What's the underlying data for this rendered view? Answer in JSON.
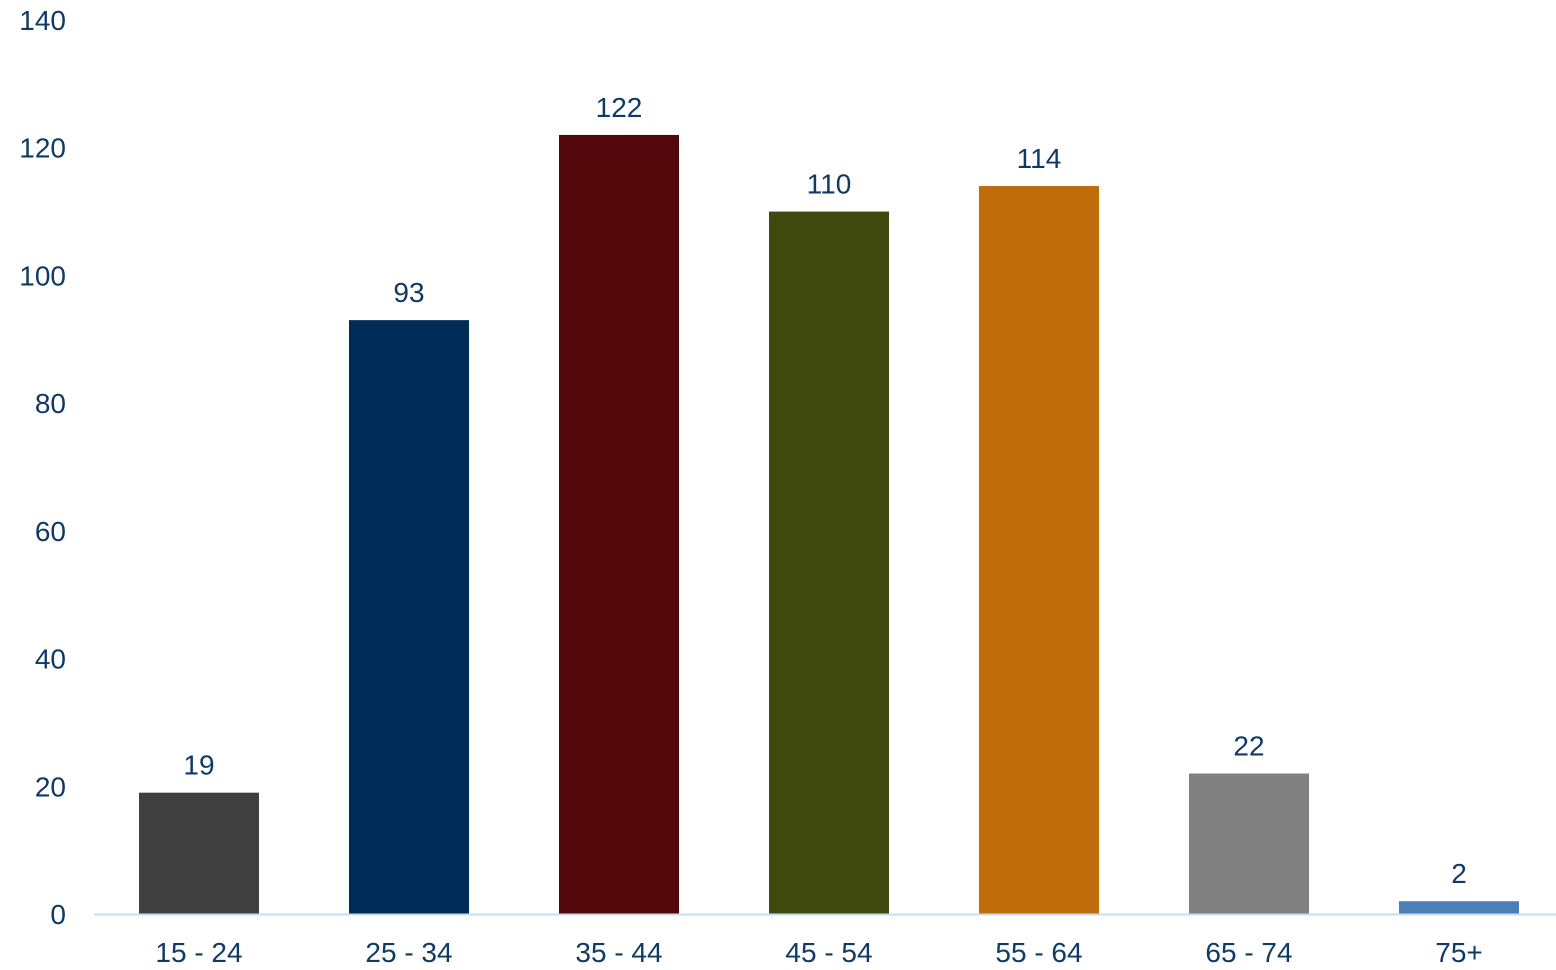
{
  "chart_data": {
    "type": "bar",
    "categories": [
      "15 - 24",
      "25 - 34",
      "35 - 44",
      "45 - 54",
      "55 - 64",
      "65 - 74",
      "75+"
    ],
    "values": [
      19,
      93,
      122,
      110,
      114,
      22,
      2
    ],
    "colors": [
      "#404040",
      "#002d57",
      "#52070b",
      "#404a0f",
      "#bf6d0a",
      "#808080",
      "#4a7fb8"
    ],
    "y_ticks": [
      "0",
      "20",
      "40",
      "60",
      "80",
      "100",
      "120",
      "140"
    ],
    "ylim": [
      0,
      140
    ],
    "data_labels": [
      "19",
      "93",
      "122",
      "110",
      "114",
      "22",
      "2"
    ],
    "title": "",
    "xlabel": "",
    "ylabel": "",
    "grid": false,
    "axis_color": "#c6dff0",
    "text_color": "#0f3a66"
  }
}
